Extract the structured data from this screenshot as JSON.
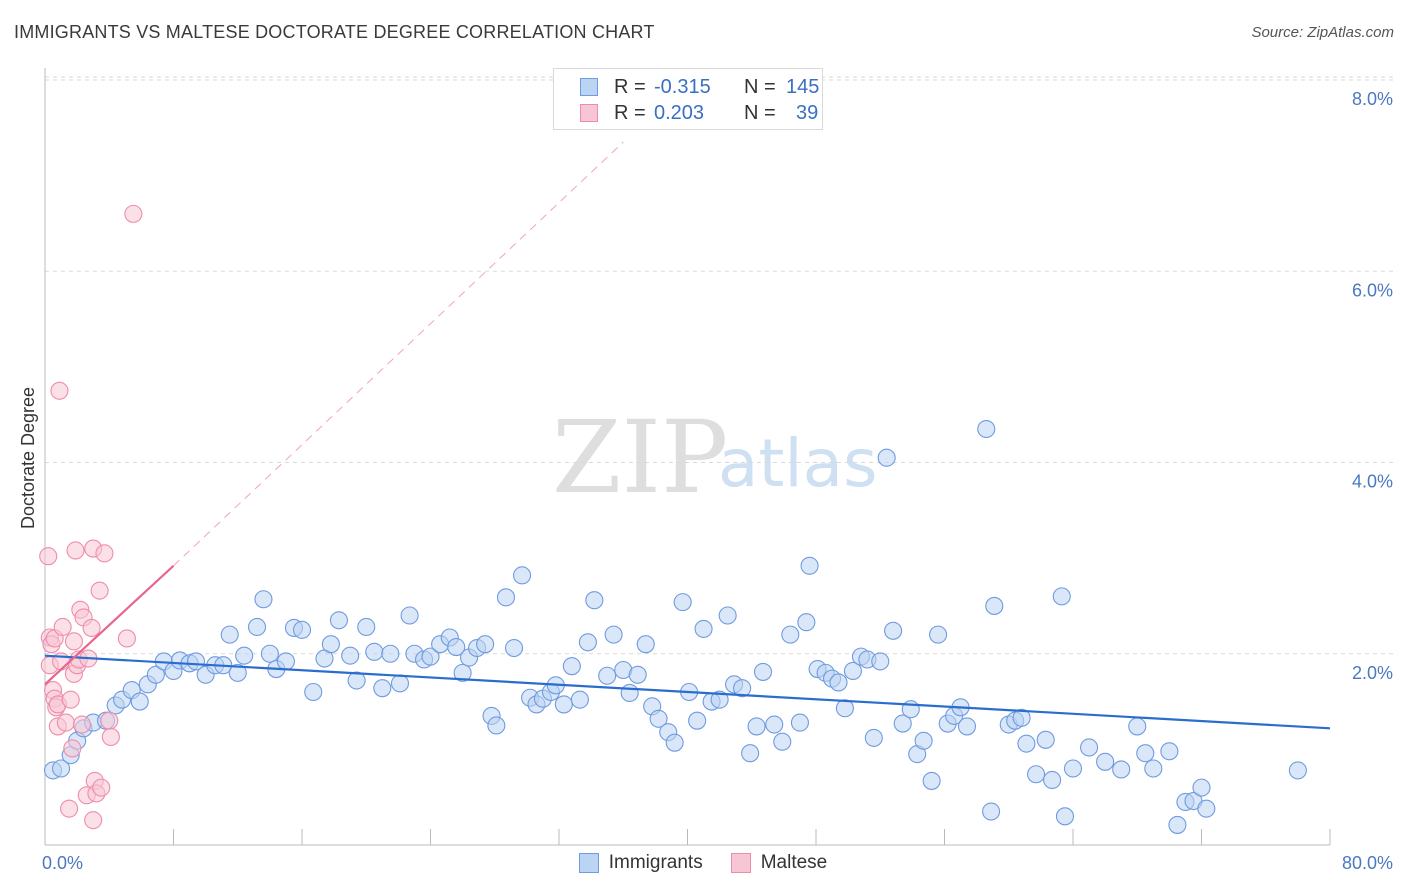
{
  "header": {
    "title": "IMMIGRANTS VS MALTESE DOCTORATE DEGREE CORRELATION CHART",
    "source": "Source: ZipAtlas.com"
  },
  "watermark": {
    "zip": "ZIP",
    "atlas": "atlas"
  },
  "legend": {
    "rows": [
      {
        "r_label": "R =",
        "r_value": "-0.315",
        "n_label": "N =",
        "n_value": "145",
        "color": "#6f9be0"
      },
      {
        "r_label": "R =",
        "r_value": "0.203",
        "n_label": "N =",
        "n_value": "39",
        "color": "#f08cab"
      }
    ]
  },
  "bottom_legend": {
    "items": [
      {
        "label": "Immigrants",
        "color": "#6f9be0"
      },
      {
        "label": "Maltese",
        "color": "#f08cab"
      }
    ]
  },
  "colors": {
    "blue_fill": "#bcd4f3",
    "blue_stroke": "#6f9be0",
    "blue_line": "#2a6dcf",
    "pink_fill": "#f7c6d5",
    "pink_stroke": "#f08cab",
    "pink_line": "#e8668e",
    "grid": "#d9d9d9",
    "axis": "#bbbbbb"
  },
  "chart_data": {
    "type": "scatter",
    "title": "IMMIGRANTS VS MALTESE DOCTORATE DEGREE CORRELATION CHART",
    "xlabel": "",
    "ylabel": "Doctorate Degree",
    "xlim": [
      0,
      80
    ],
    "ylim": [
      0,
      8
    ],
    "x_tick_labels": [
      {
        "value": 0,
        "label": "0.0%"
      },
      {
        "value": 80,
        "label": "80.0%"
      }
    ],
    "y_tick_labels": [
      {
        "value": 2,
        "label": "2.0%"
      },
      {
        "value": 4,
        "label": "4.0%"
      },
      {
        "value": 6,
        "label": "6.0%"
      },
      {
        "value": 8,
        "label": "8.0%"
      }
    ],
    "x_ticks": [
      0,
      8,
      16,
      24,
      32,
      40,
      48,
      56,
      64,
      72,
      80
    ],
    "grid_y": [
      2,
      4,
      6,
      8
    ],
    "series": [
      {
        "name": "Immigrants",
        "points": [
          [
            0.5,
            0.78
          ],
          [
            1.0,
            0.8
          ],
          [
            1.6,
            0.94
          ],
          [
            2.0,
            1.09
          ],
          [
            2.4,
            1.22
          ],
          [
            3.0,
            1.28
          ],
          [
            3.8,
            1.3
          ],
          [
            4.4,
            1.46
          ],
          [
            4.8,
            1.52
          ],
          [
            5.4,
            1.62
          ],
          [
            5.9,
            1.5
          ],
          [
            6.4,
            1.68
          ],
          [
            6.9,
            1.78
          ],
          [
            7.4,
            1.92
          ],
          [
            8.0,
            1.82
          ],
          [
            8.4,
            1.93
          ],
          [
            9.0,
            1.9
          ],
          [
            9.4,
            1.92
          ],
          [
            10.0,
            1.78
          ],
          [
            10.6,
            1.88
          ],
          [
            11.1,
            1.88
          ],
          [
            11.5,
            2.2
          ],
          [
            12.0,
            1.8
          ],
          [
            12.4,
            1.98
          ],
          [
            13.2,
            2.28
          ],
          [
            13.6,
            2.57
          ],
          [
            14.0,
            2.0
          ],
          [
            14.4,
            1.84
          ],
          [
            15.0,
            1.92
          ],
          [
            15.5,
            2.27
          ],
          [
            16.0,
            2.25
          ],
          [
            16.7,
            1.6
          ],
          [
            17.4,
            1.95
          ],
          [
            17.8,
            2.1
          ],
          [
            18.3,
            2.35
          ],
          [
            19.0,
            1.98
          ],
          [
            19.4,
            1.72
          ],
          [
            20.0,
            2.28
          ],
          [
            20.5,
            2.02
          ],
          [
            21.0,
            1.64
          ],
          [
            21.5,
            2.0
          ],
          [
            22.1,
            1.69
          ],
          [
            22.7,
            2.4
          ],
          [
            23.0,
            2.0
          ],
          [
            23.6,
            1.94
          ],
          [
            24.0,
            1.97
          ],
          [
            24.6,
            2.1
          ],
          [
            25.2,
            2.17
          ],
          [
            25.6,
            2.07
          ],
          [
            26.0,
            1.8
          ],
          [
            26.4,
            1.96
          ],
          [
            26.9,
            2.06
          ],
          [
            27.4,
            2.1
          ],
          [
            27.8,
            1.35
          ],
          [
            28.1,
            1.25
          ],
          [
            28.7,
            2.59
          ],
          [
            29.2,
            2.06
          ],
          [
            29.7,
            2.82
          ],
          [
            30.2,
            1.54
          ],
          [
            30.6,
            1.47
          ],
          [
            31.0,
            1.53
          ],
          [
            31.5,
            1.6
          ],
          [
            31.8,
            1.67
          ],
          [
            32.3,
            1.47
          ],
          [
            32.8,
            1.87
          ],
          [
            33.3,
            1.52
          ],
          [
            33.8,
            2.12
          ],
          [
            34.2,
            2.56
          ],
          [
            35.0,
            1.77
          ],
          [
            35.4,
            2.2
          ],
          [
            36.0,
            1.83
          ],
          [
            36.4,
            1.59
          ],
          [
            36.9,
            1.78
          ],
          [
            37.4,
            2.1
          ],
          [
            37.8,
            1.45
          ],
          [
            38.2,
            1.32
          ],
          [
            38.8,
            1.18
          ],
          [
            39.2,
            1.07
          ],
          [
            39.7,
            2.54
          ],
          [
            40.1,
            1.6
          ],
          [
            40.6,
            1.3
          ],
          [
            41.0,
            2.26
          ],
          [
            41.5,
            1.5
          ],
          [
            42.0,
            1.52
          ],
          [
            42.5,
            2.4
          ],
          [
            42.9,
            1.68
          ],
          [
            43.4,
            1.64
          ],
          [
            43.9,
            0.96
          ],
          [
            44.3,
            1.24
          ],
          [
            44.7,
            1.81
          ],
          [
            45.4,
            1.26
          ],
          [
            45.9,
            1.08
          ],
          [
            46.4,
            2.2
          ],
          [
            47.0,
            1.28
          ],
          [
            47.4,
            2.33
          ],
          [
            47.6,
            2.92
          ],
          [
            48.1,
            1.84
          ],
          [
            48.6,
            1.8
          ],
          [
            49.0,
            1.74
          ],
          [
            49.4,
            1.7
          ],
          [
            49.8,
            1.43
          ],
          [
            50.3,
            1.82
          ],
          [
            50.8,
            1.97
          ],
          [
            51.2,
            1.94
          ],
          [
            51.6,
            1.12
          ],
          [
            52.0,
            1.92
          ],
          [
            52.4,
            4.05
          ],
          [
            52.8,
            2.24
          ],
          [
            53.4,
            1.27
          ],
          [
            53.9,
            1.42
          ],
          [
            54.3,
            0.95
          ],
          [
            54.7,
            1.09
          ],
          [
            55.2,
            0.67
          ],
          [
            55.6,
            2.2
          ],
          [
            56.2,
            1.27
          ],
          [
            56.6,
            1.35
          ],
          [
            57.0,
            1.44
          ],
          [
            57.4,
            1.24
          ],
          [
            58.6,
            4.35
          ],
          [
            58.9,
            0.35
          ],
          [
            59.1,
            2.5
          ],
          [
            60.0,
            1.26
          ],
          [
            60.4,
            1.3
          ],
          [
            60.8,
            1.33
          ],
          [
            61.1,
            1.06
          ],
          [
            61.7,
            0.74
          ],
          [
            62.3,
            1.1
          ],
          [
            62.7,
            0.68
          ],
          [
            63.3,
            2.6
          ],
          [
            63.5,
            0.3
          ],
          [
            64.0,
            0.8
          ],
          [
            65.0,
            1.02
          ],
          [
            66.0,
            0.87
          ],
          [
            67.0,
            0.79
          ],
          [
            68.0,
            1.24
          ],
          [
            68.5,
            0.96
          ],
          [
            69.0,
            0.8
          ],
          [
            70.0,
            0.98
          ],
          [
            70.5,
            0.21
          ],
          [
            71.0,
            0.45
          ],
          [
            71.5,
            0.46
          ],
          [
            72.0,
            0.6
          ],
          [
            72.3,
            0.38
          ],
          [
            78.0,
            0.78
          ]
        ]
      },
      {
        "name": "Maltese",
        "points": [
          [
            0.2,
            3.02
          ],
          [
            0.3,
            2.17
          ],
          [
            0.3,
            1.88
          ],
          [
            0.4,
            2.1
          ],
          [
            0.5,
            1.62
          ],
          [
            0.6,
            2.16
          ],
          [
            0.6,
            1.53
          ],
          [
            0.7,
            1.44
          ],
          [
            0.8,
            1.24
          ],
          [
            0.8,
            1.47
          ],
          [
            0.9,
            4.75
          ],
          [
            1.0,
            1.92
          ],
          [
            1.1,
            2.28
          ],
          [
            1.3,
            1.28
          ],
          [
            1.5,
            0.38
          ],
          [
            1.6,
            1.52
          ],
          [
            1.7,
            1.01
          ],
          [
            1.8,
            2.13
          ],
          [
            1.8,
            1.79
          ],
          [
            1.9,
            3.08
          ],
          [
            2.0,
            1.88
          ],
          [
            2.1,
            1.94
          ],
          [
            2.2,
            2.46
          ],
          [
            2.3,
            1.26
          ],
          [
            2.4,
            2.38
          ],
          [
            2.6,
            0.52
          ],
          [
            2.7,
            1.95
          ],
          [
            2.9,
            2.27
          ],
          [
            3.0,
            3.1
          ],
          [
            3.0,
            0.26
          ],
          [
            3.1,
            0.67
          ],
          [
            3.2,
            0.54
          ],
          [
            3.4,
            2.66
          ],
          [
            3.5,
            0.6
          ],
          [
            3.7,
            3.05
          ],
          [
            4.0,
            1.3
          ],
          [
            4.1,
            1.13
          ],
          [
            5.1,
            2.16
          ],
          [
            5.5,
            6.6
          ]
        ]
      }
    ],
    "trend_lines": [
      {
        "name": "Immigrants trend",
        "x": [
          0,
          80
        ],
        "y": [
          1.98,
          1.22
        ]
      },
      {
        "name": "Maltese trend",
        "x": [
          0,
          8
        ],
        "y": [
          1.68,
          2.92
        ]
      },
      {
        "name": "Maltese trend extension",
        "x": [
          8,
          36
        ],
        "y": [
          2.92,
          7.35
        ]
      }
    ]
  }
}
